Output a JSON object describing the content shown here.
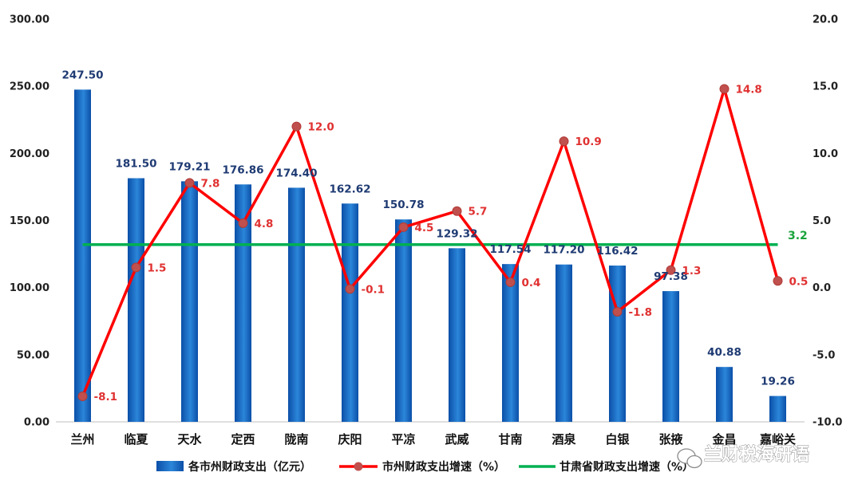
{
  "chart_data": {
    "type": "bar",
    "categories": [
      "兰州",
      "临夏",
      "天水",
      "定西",
      "陇南",
      "庆阳",
      "平凉",
      "武威",
      "甘南",
      "酒泉",
      "白银",
      "张掖",
      "金昌",
      "嘉峪关"
    ],
    "series": [
      {
        "name": "各市州财政支出（亿元）",
        "type": "bar",
        "axis": "left",
        "values": [
          247.5,
          181.5,
          179.21,
          176.86,
          174.4,
          162.62,
          150.78,
          129.32,
          117.54,
          117.2,
          116.42,
          97.38,
          40.88,
          19.26
        ],
        "labels": [
          "247.50",
          "181.50",
          "179.21",
          "176.86",
          "174.40",
          "162.62",
          "150.78",
          "129.32",
          "117.54",
          "117.20",
          "116.42",
          "97.38",
          "40.88",
          "19.26"
        ]
      },
      {
        "name": "市州财政支出增速（%）",
        "type": "line",
        "axis": "right",
        "values": [
          -8.1,
          1.5,
          7.8,
          4.8,
          12.0,
          -0.1,
          4.5,
          5.7,
          0.4,
          10.9,
          -1.8,
          1.3,
          14.8,
          0.5
        ],
        "labels": [
          "-8.1",
          "1.5",
          "7.8",
          "4.8",
          "12.0",
          "-0.1",
          "4.5",
          "5.7",
          "0.4",
          "10.9",
          "-1.8",
          "1.3",
          "14.8",
          "0.5"
        ]
      },
      {
        "name": "甘肃省财政支出增速（%）",
        "type": "reference-line",
        "axis": "right",
        "value": 3.2,
        "label": "3.2"
      }
    ],
    "y_left": {
      "ylim": [
        0,
        300
      ],
      "ticks": [
        "0.00",
        "50.00",
        "100.00",
        "150.00",
        "200.00",
        "250.00",
        "300.00"
      ]
    },
    "y_right": {
      "ylim": [
        -10,
        20
      ],
      "ticks": [
        "-10.0",
        "-5.0",
        "0.0",
        "5.0",
        "10.0",
        "15.0",
        "20.0"
      ]
    },
    "legend_position": "bottom",
    "grid": false,
    "colors": {
      "bar": "#1565c0",
      "bar_light": "#4a9be3",
      "line": "#ff0000",
      "marker": "#c0504d",
      "reference": "#00b050",
      "bar_label": "#1f3b73",
      "line_label": "#e03131",
      "reference_label": "#1aa33a"
    }
  },
  "watermark": {
    "text": "兰财税海研语",
    "icon": "wechat-icon"
  }
}
